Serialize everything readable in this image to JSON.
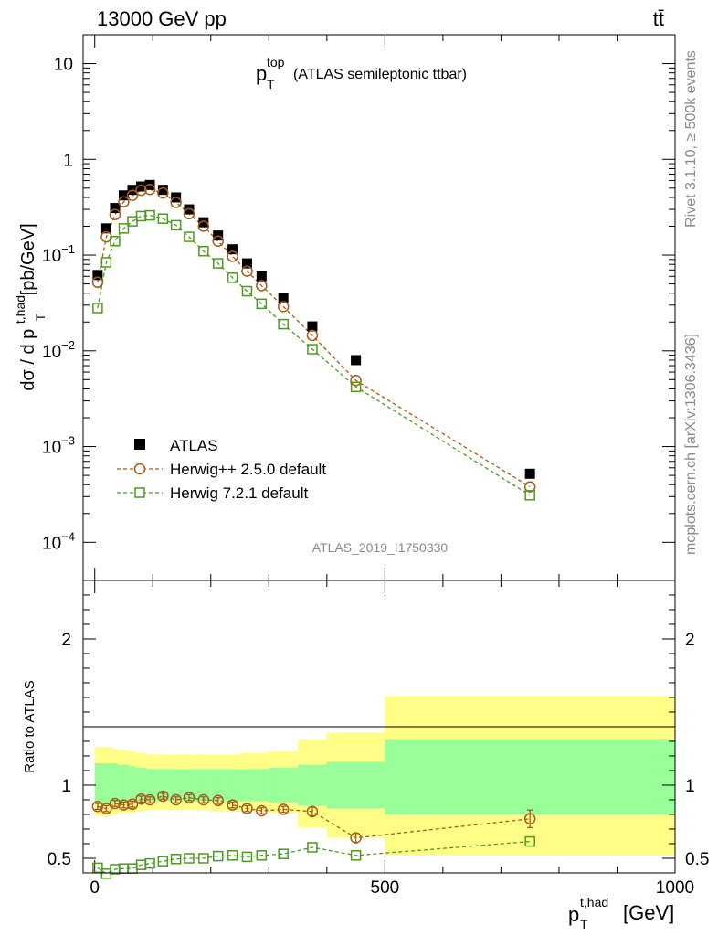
{
  "header": {
    "energy_label": "13000 GeV pp",
    "process_label": "tt̄"
  },
  "side_labels": {
    "rivet": "Rivet 3.1.10, ≥ 500k events",
    "mcplots": "mcplots.cern.ch [arXiv:1306.3436]"
  },
  "chart_data": {
    "type": "scatter",
    "title_main": "p",
    "title_sup": "top",
    "title_sub": "T",
    "title_rest": "(ATLAS semileptonic ttbar)",
    "analysis_id": "ATLAS_2019_I1750330",
    "xlabel": {
      "main": "p",
      "sup": "t,had",
      "sub": "T",
      "unit": "[GeV]"
    },
    "ylabel": {
      "pre": "dσ / d p",
      "sup": "t,had",
      "sub": "T",
      "unit": "[pb/GeV]"
    },
    "ratio_ylabel": "Ratio to ATLAS",
    "xlim": [
      -20,
      1000
    ],
    "ylim_log": [
      4e-05,
      20
    ],
    "ratio_ylim": [
      0.4,
      2.4
    ],
    "x_ticks": [
      0,
      500,
      1000
    ],
    "y_ticks": [
      {
        "value": 10,
        "base": "10",
        "exp": ""
      },
      {
        "value": 1,
        "base": "1",
        "exp": ""
      },
      {
        "value": 0.1,
        "base": "10",
        "exp": "−1"
      },
      {
        "value": 0.01,
        "base": "10",
        "exp": "−2"
      },
      {
        "value": 0.001,
        "base": "10",
        "exp": "−3"
      },
      {
        "value": 0.0001,
        "base": "10",
        "exp": "−4"
      }
    ],
    "ratio_ticks": [
      {
        "value": 0.5,
        "label": "0.5"
      },
      {
        "value": 1,
        "label": "1"
      },
      {
        "value": 2,
        "label": "2"
      }
    ],
    "x": [
      5,
      20,
      35,
      50,
      65,
      80,
      95,
      117.5,
      140,
      162.5,
      187.5,
      212.5,
      237.5,
      262.5,
      287.5,
      325,
      375,
      450,
      750
    ],
    "series": [
      {
        "name": "ATLAS",
        "color": "#000000",
        "marker": "filled-square",
        "values": [
          0.062,
          0.19,
          0.31,
          0.42,
          0.48,
          0.52,
          0.54,
          0.48,
          0.4,
          0.3,
          0.22,
          0.16,
          0.115,
          0.082,
          0.06,
          0.036,
          0.018,
          0.008,
          0.00052
        ]
      },
      {
        "name": "Herwig++ 2.5.0 default",
        "color": "#a85a1a",
        "marker": "open-circle",
        "values": [
          0.052,
          0.155,
          0.265,
          0.36,
          0.42,
          0.475,
          0.485,
          0.445,
          0.355,
          0.27,
          0.2,
          0.14,
          0.097,
          0.068,
          0.048,
          0.029,
          0.0145,
          0.0049,
          0.00038
        ],
        "ratio": [
          0.855,
          0.84,
          0.875,
          0.865,
          0.87,
          0.905,
          0.9,
          0.925,
          0.9,
          0.915,
          0.9,
          0.895,
          0.865,
          0.84,
          0.825,
          0.835,
          0.82,
          0.64,
          0.77
        ],
        "ratio_err": [
          0.02,
          0.02,
          0.02,
          0.02,
          0.02,
          0.02,
          0.02,
          0.02,
          0.02,
          0.02,
          0.02,
          0.02,
          0.02,
          0.02,
          0.02,
          0.02,
          0.03,
          0.03,
          0.06
        ]
      },
      {
        "name": "Herwig 7.2.1 default",
        "color": "#4d9a1e",
        "marker": "open-square",
        "values": [
          0.028,
          0.084,
          0.14,
          0.19,
          0.225,
          0.255,
          0.26,
          0.24,
          0.205,
          0.155,
          0.11,
          0.082,
          0.058,
          0.042,
          0.031,
          0.019,
          0.0104,
          0.0042,
          0.00031
        ],
        "ratio": [
          0.435,
          0.395,
          0.425,
          0.43,
          0.43,
          0.455,
          0.465,
          0.48,
          0.495,
          0.5,
          0.5,
          0.515,
          0.52,
          0.51,
          0.52,
          0.53,
          0.575,
          0.52,
          0.615
        ],
        "ratio_err": [
          0.01,
          0.01,
          0.01,
          0.01,
          0.01,
          0.01,
          0.01,
          0.01,
          0.01,
          0.01,
          0.01,
          0.01,
          0.01,
          0.01,
          0.01,
          0.01,
          0.01,
          0.01,
          0.01
        ]
      }
    ],
    "uncertainty_bands": [
      {
        "x0": 0,
        "x1": 10,
        "green_lo": 0.87,
        "green_hi": 1.15,
        "yellow_lo": 0.79,
        "yellow_hi": 1.26
      },
      {
        "x0": 10,
        "x1": 30,
        "green_lo": 0.87,
        "green_hi": 1.15,
        "yellow_lo": 0.79,
        "yellow_hi": 1.26
      },
      {
        "x0": 30,
        "x1": 40,
        "green_lo": 0.87,
        "green_hi": 1.15,
        "yellow_lo": 0.8,
        "yellow_hi": 1.25
      },
      {
        "x0": 40,
        "x1": 60,
        "green_lo": 0.88,
        "green_hi": 1.14,
        "yellow_lo": 0.81,
        "yellow_hi": 1.24
      },
      {
        "x0": 60,
        "x1": 70,
        "green_lo": 0.88,
        "green_hi": 1.13,
        "yellow_lo": 0.81,
        "yellow_hi": 1.23
      },
      {
        "x0": 70,
        "x1": 90,
        "green_lo": 0.89,
        "green_hi": 1.12,
        "yellow_lo": 0.82,
        "yellow_hi": 1.22
      },
      {
        "x0": 90,
        "x1": 130,
        "green_lo": 0.89,
        "green_hi": 1.11,
        "yellow_lo": 0.83,
        "yellow_hi": 1.21
      },
      {
        "x0": 130,
        "x1": 150,
        "green_lo": 0.89,
        "green_hi": 1.11,
        "yellow_lo": 0.83,
        "yellow_hi": 1.21
      },
      {
        "x0": 150,
        "x1": 175,
        "green_lo": 0.89,
        "green_hi": 1.11,
        "yellow_lo": 0.83,
        "yellow_hi": 1.21
      },
      {
        "x0": 175,
        "x1": 200,
        "green_lo": 0.89,
        "green_hi": 1.11,
        "yellow_lo": 0.83,
        "yellow_hi": 1.21
      },
      {
        "x0": 200,
        "x1": 225,
        "green_lo": 0.89,
        "green_hi": 1.11,
        "yellow_lo": 0.82,
        "yellow_hi": 1.21
      },
      {
        "x0": 225,
        "x1": 250,
        "green_lo": 0.89,
        "green_hi": 1.11,
        "yellow_lo": 0.82,
        "yellow_hi": 1.21
      },
      {
        "x0": 250,
        "x1": 275,
        "green_lo": 0.89,
        "green_hi": 1.11,
        "yellow_lo": 0.82,
        "yellow_hi": 1.22
      },
      {
        "x0": 275,
        "x1": 300,
        "green_lo": 0.89,
        "green_hi": 1.11,
        "yellow_lo": 0.82,
        "yellow_hi": 1.22
      },
      {
        "x0": 300,
        "x1": 350,
        "green_lo": 0.88,
        "green_hi": 1.12,
        "yellow_lo": 0.81,
        "yellow_hi": 1.23
      },
      {
        "x0": 350,
        "x1": 400,
        "green_lo": 0.86,
        "green_hi": 1.14,
        "yellow_lo": 0.71,
        "yellow_hi": 1.31
      },
      {
        "x0": 400,
        "x1": 500,
        "green_lo": 0.84,
        "green_hi": 1.16,
        "yellow_lo": 0.64,
        "yellow_hi": 1.36
      },
      {
        "x0": 500,
        "x1": 1000,
        "green_lo": 0.8,
        "green_hi": 1.31,
        "yellow_lo": 0.52,
        "yellow_hi": 1.61
      }
    ],
    "legend_position": "lower-left"
  }
}
